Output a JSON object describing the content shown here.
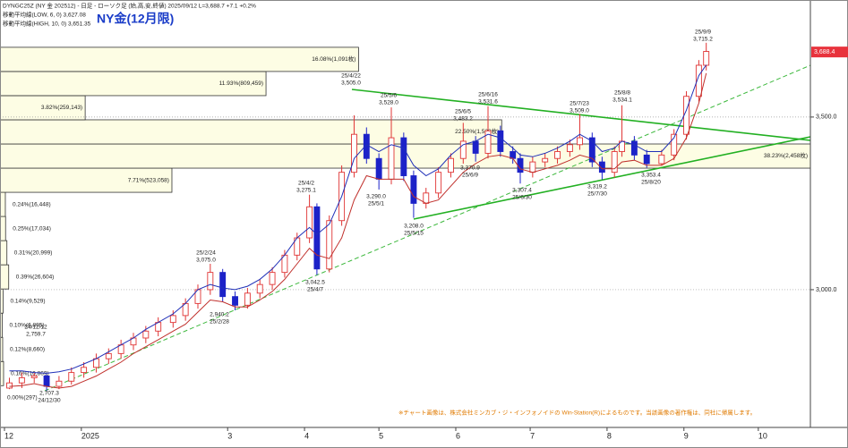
{
  "chart_data": {
    "type": "candlestick",
    "title": "NY金(12月限)",
    "info": "DYNGC25Z (NY 金 202512) - 日足 - ローソク足 (始,高,安,終値) 2025/09/12 L=3,688.7 +7.1 +0.2%",
    "note": "※チャート画像は、株式会社ミンカブ・ジ・インフォノイドの Win-Station(R)によるものです。当該画像の著作権は、同社に帰属します。",
    "xlim": [
      -1.8,
      325
    ],
    "ylim": [
      2601,
      3839
    ],
    "xticks": [
      {
        "value": 0,
        "label": "12"
      },
      {
        "value": 31,
        "label": "2025"
      },
      {
        "value": 90,
        "label": "3"
      },
      {
        "value": 121,
        "label": "4"
      },
      {
        "value": 151,
        "label": "5"
      },
      {
        "value": 182,
        "label": "6"
      },
      {
        "value": 212,
        "label": "7"
      },
      {
        "value": 243,
        "label": "8"
      },
      {
        "value": 274,
        "label": "9"
      },
      {
        "value": 304,
        "label": "10"
      }
    ],
    "yticks": [
      {
        "value": 3000,
        "label": "3,000.0"
      },
      {
        "value": 3500,
        "label": "3,500.0"
      }
    ],
    "grid": true,
    "up_color": "#e03434",
    "down_color": "#1c22c8",
    "last_price": {
      "value": 3688.4,
      "label": "3,688.4"
    },
    "x": [
      2,
      7,
      12,
      17,
      22,
      27,
      32,
      37,
      42,
      47,
      52,
      57,
      62,
      68,
      73,
      78,
      83,
      88,
      93,
      98,
      103,
      108,
      113,
      118,
      123,
      126,
      131,
      136,
      141,
      146,
      151,
      156,
      161,
      165,
      170,
      175,
      180,
      185,
      190,
      195,
      200,
      205,
      208,
      213,
      218,
      223,
      228,
      232,
      237,
      241,
      246,
      249,
      254,
      259,
      265,
      270,
      275,
      280,
      283
    ],
    "open": [
      2715,
      2730,
      2745,
      2750,
      2720,
      2735,
      2760,
      2775,
      2800,
      2815,
      2840,
      2860,
      2880,
      2905,
      2925,
      2960,
      3000,
      3050,
      2980,
      2955,
      2990,
      3015,
      3050,
      3100,
      3150,
      3240,
      3060,
      3200,
      3340,
      3450,
      3380,
      3320,
      3440,
      3330,
      3250,
      3280,
      3340,
      3380,
      3430,
      3395,
      3460,
      3400,
      3380,
      3340,
      3370,
      3380,
      3400,
      3420,
      3440,
      3370,
      3340,
      3400,
      3430,
      3390,
      3365,
      3390,
      3450,
      3560,
      3650
    ],
    "high": [
      2745,
      2760,
      2759.7,
      2755,
      2750,
      2775,
      2790,
      2815,
      2830,
      2855,
      2875,
      2895,
      2920,
      2940,
      2975,
      3015,
      3075.0,
      3060,
      2995,
      3005,
      3030,
      3065,
      3115,
      3165,
      3275.1,
      3250,
      3215,
      3360,
      3505.0,
      3470,
      3395,
      3528.0,
      3455,
      3345,
      3295,
      3355,
      3395,
      3483.2,
      3445,
      3531.6,
      3475,
      3415,
      3395,
      3385,
      3395,
      3415,
      3435,
      3509.0,
      3455,
      3385,
      3415,
      3534.1,
      3445,
      3405,
      3405,
      3465,
      3575,
      3665,
      3715.2
    ],
    "low": [
      2712,
      2715,
      2730,
      2707.3,
      2712,
      2725,
      2745,
      2760,
      2785,
      2800,
      2825,
      2845,
      2865,
      2890,
      2910,
      2945,
      2985,
      2965,
      2940.2,
      2945,
      2975,
      3000,
      3035,
      3085,
      3135,
      3042.5,
      3050,
      3185,
      3325,
      3365,
      3290.0,
      3305,
      3315,
      3208.0,
      3235,
      3265,
      3325,
      3365,
      3370.9,
      3380,
      3385,
      3365,
      3307.4,
      3325,
      3355,
      3365,
      3385,
      3405,
      3355,
      3319.2,
      3325,
      3385,
      3375,
      3353.4,
      3360,
      3375,
      3435,
      3545,
      3635
    ],
    "close": [
      2730,
      2745,
      2750,
      2720,
      2735,
      2760,
      2775,
      2800,
      2815,
      2840,
      2860,
      2880,
      2905,
      2925,
      2960,
      3000,
      3050,
      2980,
      2955,
      2990,
      3015,
      3050,
      3100,
      3150,
      3240,
      3060,
      3200,
      3340,
      3450,
      3380,
      3320,
      3440,
      3330,
      3250,
      3280,
      3340,
      3380,
      3430,
      3395,
      3460,
      3400,
      3380,
      3340,
      3370,
      3380,
      3400,
      3420,
      3440,
      3370,
      3340,
      3400,
      3430,
      3390,
      3365,
      3390,
      3450,
      3560,
      3650,
      3690
    ],
    "series": [
      {
        "name": "移動平均線(LOW, 6, 0) 3,627.08",
        "color": "#c0302c",
        "values": [
          2720,
          2722,
          2728,
          2720,
          2715,
          2720,
          2735,
          2750,
          2770,
          2790,
          2815,
          2835,
          2855,
          2880,
          2900,
          2935,
          2970,
          2965,
          2950,
          2950,
          2970,
          2995,
          3030,
          3075,
          3120,
          3100,
          3090,
          3150,
          3260,
          3330,
          3320,
          3320,
          3320,
          3270,
          3250,
          3260,
          3300,
          3340,
          3365,
          3385,
          3390,
          3380,
          3350,
          3340,
          3350,
          3360,
          3375,
          3390,
          3380,
          3350,
          3350,
          3370,
          3375,
          3360,
          3360,
          3380,
          3440,
          3540,
          3627
        ]
      },
      {
        "name": "移動平均線(HIGH, 10, 0) 3,651.35",
        "color": "#2030b8",
        "values": [
          2765,
          2765,
          2760,
          2758,
          2762,
          2770,
          2785,
          2800,
          2820,
          2840,
          2860,
          2885,
          2905,
          2930,
          2960,
          3000,
          3015,
          3005,
          3000,
          3010,
          3030,
          3060,
          3100,
          3150,
          3180,
          3160,
          3190,
          3270,
          3380,
          3420,
          3400,
          3420,
          3410,
          3360,
          3330,
          3350,
          3390,
          3420,
          3430,
          3450,
          3440,
          3410,
          3390,
          3385,
          3395,
          3410,
          3430,
          3450,
          3430,
          3400,
          3410,
          3430,
          3420,
          3400,
          3400,
          3440,
          3520,
          3620,
          3651
        ]
      }
    ],
    "volume_profile": {
      "bins": [
        2652,
        2722,
        2792,
        2862,
        2932,
        3002,
        3072,
        3142,
        3212,
        3282,
        3352,
        3422,
        3492,
        3562,
        3632,
        3702
      ],
      "values": [
        0.0,
        0.16,
        0.12,
        0.1,
        0.14,
        0.39,
        0.31,
        0.25,
        0.24,
        7.71,
        38.23,
        22.5,
        3.82,
        11.93,
        16.08
      ],
      "value_labels": [
        "0.00%(297)",
        "0.16%(10,869)",
        "0.12%(8,660)",
        "0.10%(6,895)",
        "0.14%(9,529)",
        "0.39%(26,604)",
        "0.31%(20,999)",
        "0.25%(17,034)",
        "0.24%(16,448)",
        "7.71%(523,058)",
        "38.23%(2,458枚)",
        "22.50%(1,523枚)",
        "3.82%(259,143)",
        "11.93%(809,459)",
        "16.08%(1,091枚)"
      ]
    },
    "annotations": [
      {
        "date": "24/12/12",
        "price": "2,759.7"
      },
      {
        "date": "24/12/30",
        "price": "2,707.3"
      },
      {
        "date": "25/2/24",
        "price": "3,075.0"
      },
      {
        "date": "25/2/28",
        "price": "2,940.2"
      },
      {
        "date": "25/4/2",
        "price": "3,275.1"
      },
      {
        "date": "25/4/7",
        "price": "3,042.5"
      },
      {
        "date": "25/4/22",
        "price": "3,505.0"
      },
      {
        "date": "25/5/6",
        "price": "3,528.0"
      },
      {
        "date": "25/5/1",
        "price": "3,290.0"
      },
      {
        "date": "25/5/15",
        "price": "3,208.0"
      },
      {
        "date": "25/6/5",
        "price": "3,483.2"
      },
      {
        "date": "25/6/16",
        "price": "3,531.6"
      },
      {
        "date": "25/6/9",
        "price": "3,370.9"
      },
      {
        "date": "25/6/30",
        "price": "3,307.4"
      },
      {
        "date": "25/7/23",
        "price": "3,509.0"
      },
      {
        "date": "25/7/30",
        "price": "3,319.2"
      },
      {
        "date": "25/8/8",
        "price": "3,534.1"
      },
      {
        "date": "25/8/20",
        "price": "3,353.4"
      },
      {
        "date": "25/9/9",
        "price": "3,715.2"
      }
    ]
  }
}
